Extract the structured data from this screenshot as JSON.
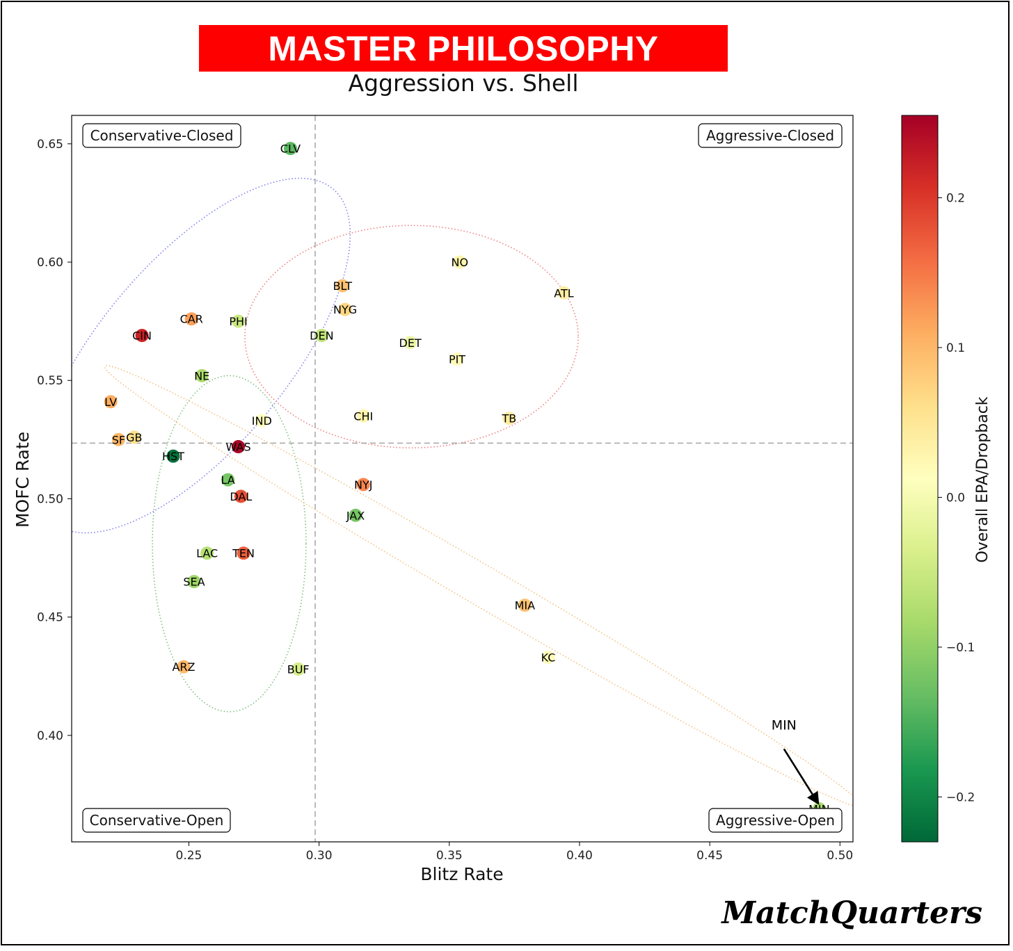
{
  "header": {
    "title": "MASTER PHILOSOPHY",
    "subtitle": "Aggression vs. Shell"
  },
  "brand": "MatchQuarters",
  "chart_data": {
    "type": "scatter",
    "xlabel": "Blitz Rate",
    "ylabel": "MOFC Rate",
    "xlim": [
      0.205,
      0.505
    ],
    "ylim": [
      0.355,
      0.662
    ],
    "xticks": [
      0.25,
      0.3,
      0.35,
      0.4,
      0.45,
      0.5
    ],
    "xtick_labels": [
      "0.25",
      "0.30",
      "0.35",
      "0.40",
      "0.45",
      "0.50"
    ],
    "yticks": [
      0.4,
      0.45,
      0.5,
      0.55,
      0.6,
      0.65
    ],
    "ytick_labels": [
      "0.40",
      "0.45",
      "0.50",
      "0.55",
      "0.60",
      "0.65"
    ],
    "grid": false,
    "reference_lines": {
      "x": 0.2985,
      "y": 0.5235
    },
    "quadrant_labels": {
      "top_left": "Conservative-Closed",
      "top_right": "Aggressive-Closed",
      "bottom_left": "Conservative-Open",
      "bottom_right": "Aggressive-Open"
    },
    "colorbar": {
      "label": "Overall EPA/Dropback",
      "min": -0.23,
      "max": 0.255,
      "ticks": [
        -0.2,
        -0.1,
        0.0,
        0.1,
        0.2
      ],
      "tick_labels": [
        "−0.2",
        "−0.1",
        "0.0",
        "0.1",
        "0.2"
      ],
      "colormap": "RdYlGn_r"
    },
    "points": [
      {
        "team": "CLV",
        "x": 0.289,
        "y": 0.648,
        "epa": -0.14
      },
      {
        "team": "NO",
        "x": 0.354,
        "y": 0.6,
        "epa": 0.03
      },
      {
        "team": "BLT",
        "x": 0.309,
        "y": 0.59,
        "epa": 0.09
      },
      {
        "team": "ATL",
        "x": 0.394,
        "y": 0.587,
        "epa": 0.04
      },
      {
        "team": "NYG",
        "x": 0.31,
        "y": 0.58,
        "epa": 0.07
      },
      {
        "team": "CAR",
        "x": 0.251,
        "y": 0.576,
        "epa": 0.12
      },
      {
        "team": "PHI",
        "x": 0.269,
        "y": 0.575,
        "epa": -0.05
      },
      {
        "team": "CIN",
        "x": 0.232,
        "y": 0.569,
        "epa": 0.22
      },
      {
        "team": "DEN",
        "x": 0.301,
        "y": 0.569,
        "epa": -0.06
      },
      {
        "team": "DET",
        "x": 0.335,
        "y": 0.566,
        "epa": -0.01
      },
      {
        "team": "PIT",
        "x": 0.353,
        "y": 0.559,
        "epa": 0.02
      },
      {
        "team": "NE",
        "x": 0.255,
        "y": 0.552,
        "epa": -0.08
      },
      {
        "team": "LV",
        "x": 0.22,
        "y": 0.541,
        "epa": 0.11
      },
      {
        "team": "CHI",
        "x": 0.317,
        "y": 0.535,
        "epa": 0.03
      },
      {
        "team": "TB",
        "x": 0.373,
        "y": 0.534,
        "epa": 0.04
      },
      {
        "team": "IND",
        "x": 0.278,
        "y": 0.533,
        "epa": 0.01
      },
      {
        "team": "SF",
        "x": 0.223,
        "y": 0.525,
        "epa": 0.1
      },
      {
        "team": "GB",
        "x": 0.229,
        "y": 0.526,
        "epa": 0.06
      },
      {
        "team": "WAS",
        "x": 0.269,
        "y": 0.522,
        "epa": 0.25
      },
      {
        "team": "HST",
        "x": 0.244,
        "y": 0.518,
        "epa": -0.22
      },
      {
        "team": "LA",
        "x": 0.265,
        "y": 0.508,
        "epa": -0.12
      },
      {
        "team": "NYJ",
        "x": 0.317,
        "y": 0.506,
        "epa": 0.14
      },
      {
        "team": "DAL",
        "x": 0.27,
        "y": 0.501,
        "epa": 0.18
      },
      {
        "team": "JAX",
        "x": 0.314,
        "y": 0.493,
        "epa": -0.12
      },
      {
        "team": "LAC",
        "x": 0.257,
        "y": 0.477,
        "epa": -0.07
      },
      {
        "team": "TEN",
        "x": 0.271,
        "y": 0.477,
        "epa": 0.17
      },
      {
        "team": "SEA",
        "x": 0.252,
        "y": 0.465,
        "epa": -0.09
      },
      {
        "team": "MIA",
        "x": 0.379,
        "y": 0.455,
        "epa": 0.09
      },
      {
        "team": "KC",
        "x": 0.388,
        "y": 0.433,
        "epa": 0.02
      },
      {
        "team": "ARZ",
        "x": 0.248,
        "y": 0.429,
        "epa": 0.1
      },
      {
        "team": "BUF",
        "x": 0.292,
        "y": 0.428,
        "epa": -0.04
      },
      {
        "team": "MIN",
        "x": 0.492,
        "y": 0.369,
        "epa": -0.08
      }
    ],
    "annotations": [
      {
        "text": "MIN",
        "x": 0.4785,
        "y": 0.4025,
        "arrow_to": [
          0.4915,
          0.3715
        ]
      }
    ],
    "ellipses": [
      {
        "color": "#8080ee",
        "cx": 0.2515,
        "cy": 0.5605,
        "rx": 0.036,
        "ry": 0.092,
        "rotate_deg": 40
      },
      {
        "color": "#ee8080",
        "cx": 0.3355,
        "cy": 0.5685,
        "rx": 0.064,
        "ry": 0.047,
        "rotate_deg": 0
      },
      {
        "color": "#80c080",
        "cx": 0.2655,
        "cy": 0.481,
        "rx": 0.0295,
        "ry": 0.071,
        "rotate_deg": 0
      },
      {
        "color": "#f4c080",
        "cx": 0.363,
        "cy": 0.463,
        "rx": 0.168,
        "ry": 0.0085,
        "rotate_deg": 30.2
      }
    ]
  }
}
